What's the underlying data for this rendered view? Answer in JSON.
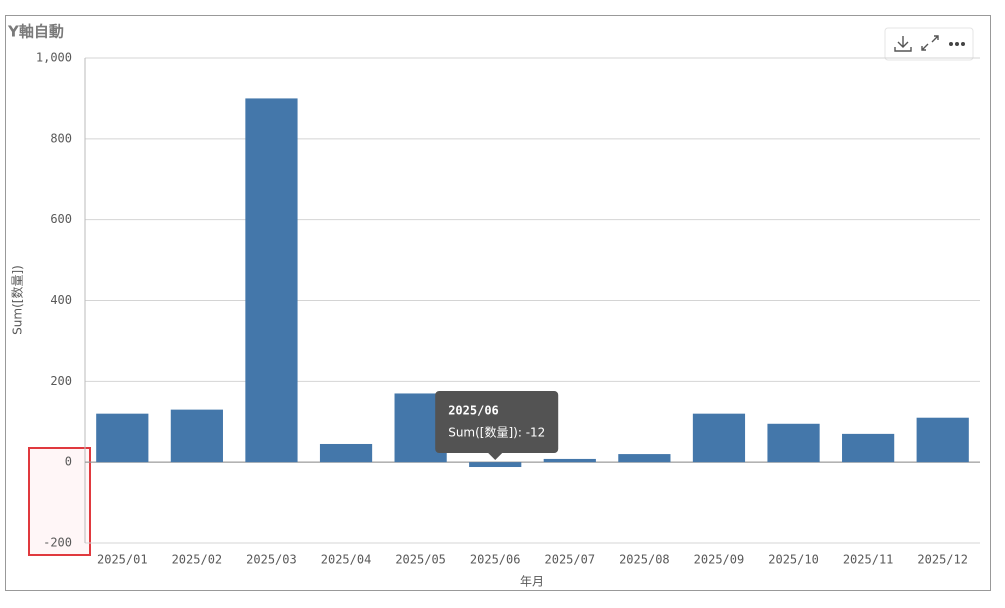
{
  "chart_data": {
    "type": "bar",
    "title": "Y軸自動",
    "x_label": "年月",
    "y_label": "Sum([数量])",
    "categories": [
      "2025/01",
      "2025/02",
      "2025/03",
      "2025/04",
      "2025/05",
      "2025/06",
      "2025/07",
      "2025/08",
      "2025/09",
      "2025/10",
      "2025/11",
      "2025/12"
    ],
    "values": [
      120,
      130,
      900,
      45,
      170,
      -12,
      8,
      20,
      120,
      95,
      70,
      110
    ],
    "color": "#4477aa",
    "ylim": [
      -200,
      1000
    ],
    "yticks": [
      -200,
      0,
      200,
      400,
      600,
      800,
      {
        "value": 1000,
        "label": "1,000"
      }
    ],
    "grid": true,
    "tooltip": {
      "title": "2025/06",
      "text": "Sum([数量]): -12"
    }
  }
}
